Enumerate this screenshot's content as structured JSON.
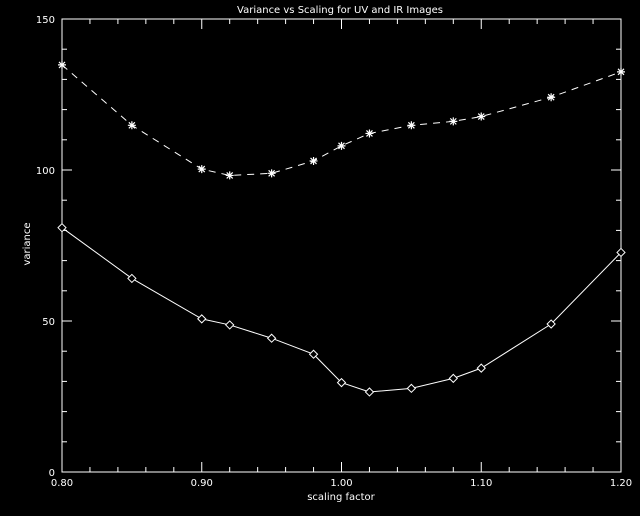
{
  "chart_data": {
    "type": "line",
    "title": "Variance vs Scaling for UV and IR Images",
    "xlabel": "scaling factor",
    "ylabel": "variance",
    "xlim": [
      0.8,
      1.2
    ],
    "ylim": [
      0,
      150
    ],
    "x_ticks": [
      "0.80",
      "0.90",
      "1.00",
      "1.10",
      "1.20"
    ],
    "y_ticks": [
      "0",
      "50",
      "100",
      "150"
    ],
    "grid": false,
    "colors": {
      "background": "#000000",
      "foreground": "#ffffff"
    },
    "x": [
      0.8,
      0.85,
      0.9,
      0.92,
      0.95,
      0.98,
      1.0,
      1.02,
      1.05,
      1.08,
      1.1,
      1.15,
      1.2
    ],
    "series": [
      {
        "linestyle": "dashed",
        "marker": "asterisk",
        "values": [
          134.8,
          114.8,
          100.3,
          98.2,
          98.9,
          103.0,
          108.0,
          112.1,
          114.8,
          116.1,
          117.7,
          124.1,
          132.5
        ]
      },
      {
        "linestyle": "solid",
        "marker": "diamond",
        "values": [
          80.9,
          64.1,
          50.7,
          48.7,
          44.3,
          39.0,
          29.6,
          26.5,
          27.7,
          31.0,
          34.4,
          49.0,
          72.7
        ]
      }
    ]
  }
}
